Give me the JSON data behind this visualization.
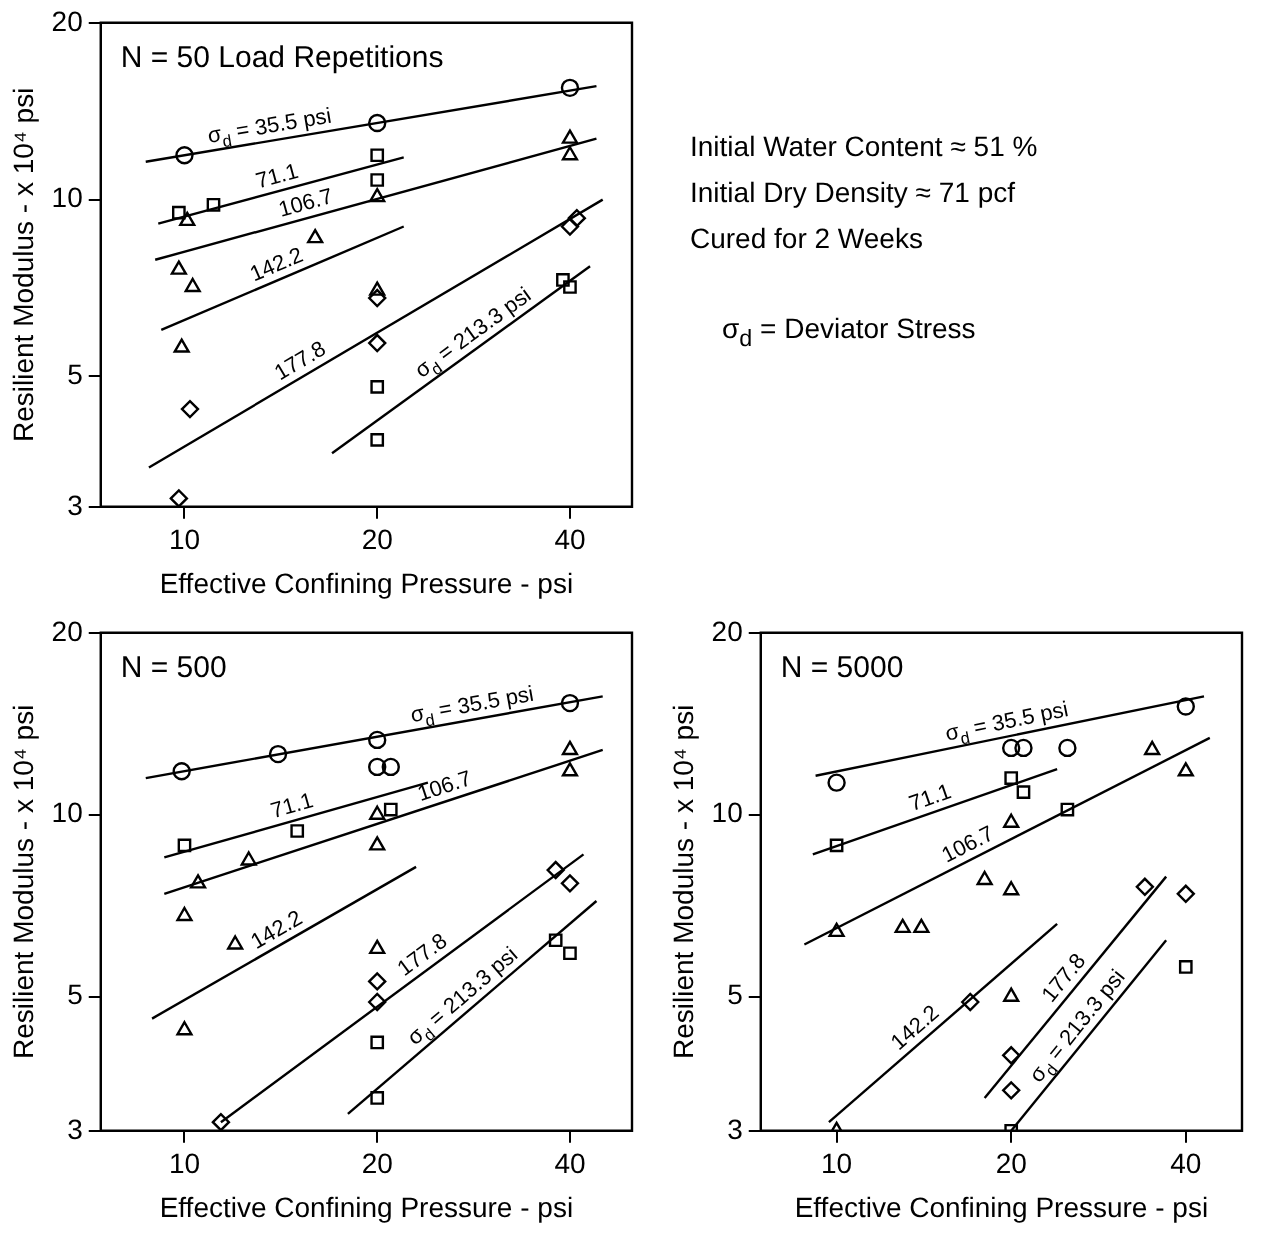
{
  "chart_data": [
    {
      "type": "scatter",
      "title": "N = 50 Load Repetitions",
      "xlabel": "Effective Confining Pressure - psi",
      "ylabel": "Resilient Modulus - x 10⁴ psi",
      "log": "xy",
      "xlim": [
        7.4,
        50
      ],
      "ylim": [
        3,
        20
      ],
      "xticks": [
        10,
        20,
        40
      ],
      "yticks": [
        3,
        5,
        10,
        20
      ],
      "series": [
        {
          "type": "line",
          "name": "σ$_{d}$ = 35.5 psi",
          "color": "#000000",
          "x": [
            8.7,
            44
          ],
          "values": [
            11.6,
            15.6
          ]
        },
        {
          "type": "line",
          "name": "71.1",
          "color": "#000000",
          "x": [
            9.1,
            22
          ],
          "values": [
            9.1,
            11.8
          ]
        },
        {
          "type": "line",
          "name": "106.7",
          "color": "#000000",
          "x": [
            9,
            44
          ],
          "values": [
            7.9,
            12.7
          ]
        },
        {
          "type": "line",
          "name": "142.2",
          "color": "#000000",
          "x": [
            9.2,
            22
          ],
          "values": [
            6,
            9
          ]
        },
        {
          "type": "line",
          "name": "177.8",
          "color": "#000000",
          "x": [
            8.8,
            45
          ],
          "values": [
            3.5,
            10
          ]
        },
        {
          "type": "line",
          "name": "σ$_{d}$ = 213.3 psi",
          "color": "#000000",
          "x": [
            17,
            43
          ],
          "values": [
            3.7,
            7.7
          ]
        },
        {
          "type": "scatter",
          "color": "#000000",
          "marker": "circle",
          "x": [
            10,
            20,
            40
          ],
          "values": [
            11.9,
            13.5,
            15.5
          ]
        },
        {
          "type": "scatter",
          "color": "#000000",
          "marker": "square",
          "x": [
            9.8,
            11.1,
            20,
            20
          ],
          "values": [
            9.5,
            9.8,
            11.9,
            10.8
          ]
        },
        {
          "type": "scatter",
          "color": "#000000",
          "marker": "triangle",
          "x": [
            10.1,
            20,
            40,
            40,
            9.8,
            16
          ],
          "values": [
            9.2,
            10.1,
            12.7,
            11.9,
            7.6,
            8.6
          ]
        },
        {
          "type": "scatter",
          "color": "#000000",
          "marker": "triangle",
          "x": [
            10.3,
            9.9,
            20
          ],
          "values": [
            7.1,
            5.6,
            7
          ]
        },
        {
          "type": "scatter",
          "color": "#000000",
          "marker": "diamond",
          "x": [
            10.2,
            9.8,
            20,
            20,
            40,
            41
          ],
          "values": [
            4.4,
            3.1,
            6.8,
            5.7,
            9,
            9.3
          ]
        },
        {
          "type": "scatter",
          "color": "#000000",
          "marker": "square",
          "x": [
            20,
            20,
            39,
            40
          ],
          "values": [
            4.8,
            3.9,
            7.3,
            7.1
          ]
        }
      ]
    },
    {
      "type": "other",
      "annotations": [
        "Initial Water Content ≈ 51 %",
        "Initial Dry Density ≈ 71 pcf",
        "Cured for 2 Weeks",
        "σ$_{d}$ = Deviator Stress"
      ]
    },
    {
      "type": "scatter",
      "title": "N = 500",
      "xlabel": "Effective Confining Pressure - psi",
      "ylabel": "Resilient Modulus - x 10⁴ psi",
      "log": "xy",
      "xlim": [
        7.4,
        50
      ],
      "ylim": [
        3,
        20
      ],
      "xticks": [
        10,
        20,
        40
      ],
      "yticks": [
        3,
        5,
        10,
        20
      ],
      "series": [
        {
          "type": "line",
          "name": "σ$_{d}$ = 35.5 psi",
          "color": "#000000",
          "x": [
            8.7,
            45
          ],
          "values": [
            11.5,
            15.7
          ]
        },
        {
          "type": "line",
          "name": "71.1",
          "color": "#000000",
          "x": [
            9.3,
            24
          ],
          "values": [
            8.5,
            11.3
          ]
        },
        {
          "type": "line",
          "name": "106.7",
          "color": "#000000",
          "x": [
            9.3,
            45
          ],
          "values": [
            7.4,
            12.8
          ]
        },
        {
          "type": "line",
          "name": "142.2",
          "color": "#000000",
          "x": [
            8.9,
            23
          ],
          "values": [
            4.6,
            8.2
          ]
        },
        {
          "type": "line",
          "name": "177.8",
          "color": "#000000",
          "x": [
            11.4,
            42
          ],
          "values": [
            3.1,
            8.6
          ]
        },
        {
          "type": "line",
          "name": "σ$_{d}$ = 213.3 psi",
          "color": "#000000",
          "x": [
            18,
            44
          ],
          "values": [
            3.2,
            7.2
          ]
        },
        {
          "type": "scatter",
          "color": "#000000",
          "marker": "circle",
          "x": [
            9.9,
            14,
            20,
            40
          ],
          "values": [
            11.8,
            12.6,
            13.3,
            15.3
          ]
        },
        {
          "type": "scatter",
          "color": "#000000",
          "marker": "square",
          "x": [
            10,
            15,
            21
          ],
          "values": [
            8.9,
            9.4,
            10.2
          ]
        },
        {
          "type": "scatter",
          "color": "#000000",
          "marker": "circle",
          "x": [
            20,
            21
          ],
          "values": [
            12,
            12
          ]
        },
        {
          "type": "scatter",
          "color": "#000000",
          "marker": "triangle",
          "x": [
            10.5,
            12.6,
            20,
            40,
            40,
            10
          ],
          "values": [
            7.7,
            8.4,
            10,
            12.8,
            11.8,
            6.8
          ]
        },
        {
          "type": "scatter",
          "color": "#000000",
          "marker": "triangle",
          "x": [
            10,
            12,
            20,
            20
          ],
          "values": [
            4.4,
            6.1,
            8.9,
            6
          ]
        },
        {
          "type": "scatter",
          "color": "#000000",
          "marker": "diamond",
          "x": [
            20,
            20,
            11.4,
            38,
            40
          ],
          "values": [
            5.3,
            4.9,
            3.1,
            8.1,
            7.7
          ]
        },
        {
          "type": "scatter",
          "color": "#000000",
          "marker": "square",
          "x": [
            20,
            20,
            38,
            40
          ],
          "values": [
            4.2,
            3.4,
            6.2,
            5.9
          ]
        }
      ]
    },
    {
      "type": "scatter",
      "title": "N = 5000",
      "xlabel": "Effective Confining Pressure - psi",
      "ylabel": "Resilient Modulus - x 10⁴ psi",
      "log": "xy",
      "xlim": [
        7.4,
        50
      ],
      "ylim": [
        3,
        20
      ],
      "xticks": [
        10,
        20,
        40
      ],
      "yticks": [
        3,
        5,
        10,
        20
      ],
      "series": [
        {
          "type": "line",
          "name": "σ$_{d}$ = 35.5 psi",
          "color": "#000000",
          "x": [
            9.2,
            43
          ],
          "values": [
            11.6,
            15.7
          ]
        },
        {
          "type": "line",
          "name": "71.1",
          "color": "#000000",
          "x": [
            9.1,
            24
          ],
          "values": [
            8.6,
            11.9
          ]
        },
        {
          "type": "line",
          "name": "106.7",
          "color": "#000000",
          "x": [
            8.8,
            44
          ],
          "values": [
            6.1,
            13.4
          ]
        },
        {
          "type": "line",
          "name": "142.2",
          "color": "#000000",
          "x": [
            9.7,
            24
          ],
          "values": [
            3.1,
            6.6
          ]
        },
        {
          "type": "line",
          "name": "177.8",
          "color": "#000000",
          "x": [
            18,
            37
          ],
          "values": [
            3.4,
            7.9
          ]
        },
        {
          "type": "line",
          "name": "σ$_{d}$ = 213.3 psi",
          "color": "#000000",
          "x": [
            20,
            37
          ],
          "values": [
            3,
            6.2
          ]
        },
        {
          "type": "scatter",
          "color": "#000000",
          "marker": "circle",
          "x": [
            10,
            20,
            21,
            25,
            40
          ],
          "values": [
            11.3,
            12.9,
            12.9,
            12.9,
            15.1
          ]
        },
        {
          "type": "scatter",
          "color": "#000000",
          "marker": "square",
          "x": [
            10,
            20,
            21,
            25
          ],
          "values": [
            8.9,
            11.5,
            10.9,
            10.2
          ]
        },
        {
          "type": "scatter",
          "color": "#000000",
          "marker": "triangle",
          "x": [
            10,
            13,
            14,
            18,
            20,
            35,
            40
          ],
          "values": [
            6.4,
            6.5,
            6.5,
            7.8,
            9.7,
            12.8,
            11.8
          ]
        },
        {
          "type": "scatter",
          "color": "#000000",
          "marker": "triangle",
          "x": [
            10,
            20,
            20
          ],
          "values": [
            3,
            7.5,
            5
          ]
        },
        {
          "type": "scatter",
          "color": "#000000",
          "marker": "diamond",
          "x": [
            17,
            20,
            20,
            34,
            40
          ],
          "values": [
            4.9,
            4,
            3.5,
            7.6,
            7.4
          ]
        },
        {
          "type": "scatter",
          "color": "#000000",
          "marker": "square",
          "x": [
            20,
            40
          ],
          "values": [
            3,
            5.6
          ]
        }
      ]
    }
  ]
}
